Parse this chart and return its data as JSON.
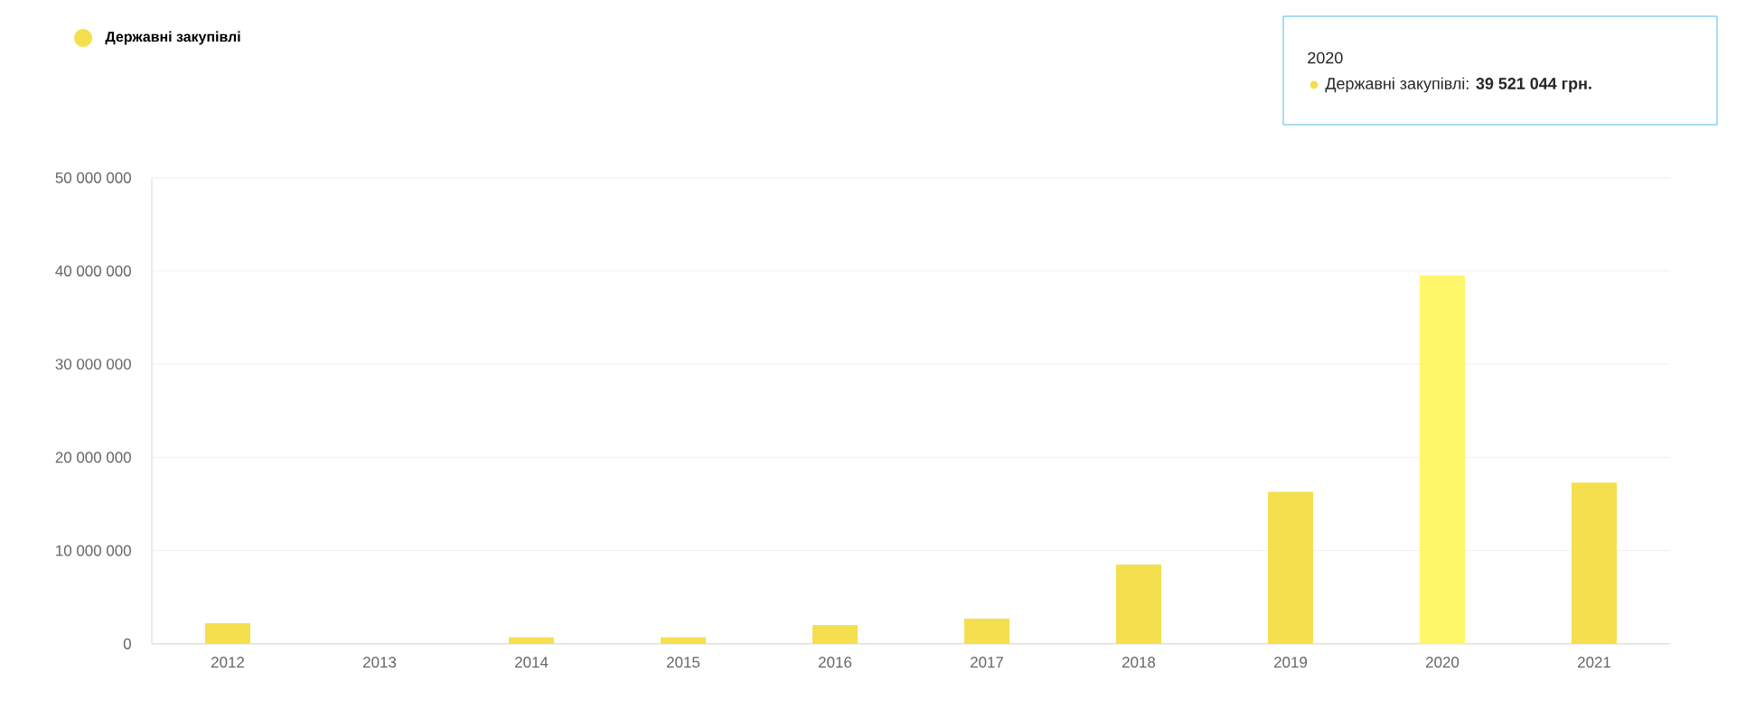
{
  "chart_data": {
    "type": "bar",
    "categories": [
      "2012",
      "2013",
      "2014",
      "2015",
      "2016",
      "2017",
      "2018",
      "2019",
      "2020",
      "2021"
    ],
    "series": [
      {
        "name": "Державні закупівлі",
        "color": "#f4df4e",
        "colors": [
          "#f4df4e",
          "#f4df4e",
          "#f4df4e",
          "#f4df4e",
          "#f4df4e",
          "#f4df4e",
          "#f4df4e",
          "#f4df4e",
          "#fff76a",
          "#f4df4e"
        ],
        "values": [
          2200000,
          0,
          700000,
          700000,
          2000000,
          2700000,
          8500000,
          16300000,
          39521044,
          17300000
        ]
      }
    ],
    "ylim": [
      0,
      50000000
    ],
    "yticks": [
      0,
      {
        "value": 10000000,
        "label": "10 000 000"
      },
      {
        "value": 20000000,
        "label": "20 000 000"
      },
      {
        "value": 30000000,
        "label": "30 000 000"
      },
      {
        "value": 40000000,
        "label": "40 000 000"
      },
      {
        "value": 50000000,
        "label": "50 000 000"
      }
    ],
    "grid": "y",
    "legend": "top left",
    "annotations": [
      "2020",
      "Державні закупівлі: **39 521 044 грн.**"
    ]
  }
}
